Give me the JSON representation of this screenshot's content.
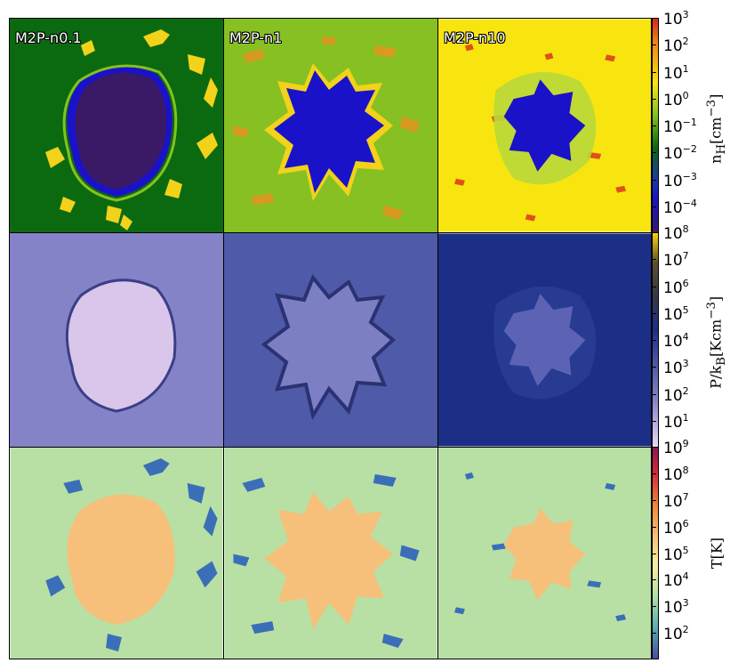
{
  "columns": [
    {
      "label": "M2P-n0.1"
    },
    {
      "label": "M2P-n1"
    },
    {
      "label": "M2P-n10"
    }
  ],
  "rows": [
    {
      "quantity": "density",
      "colorbar_label": "n_H[cm^-3]",
      "ticks": [
        "10^3",
        "10^2",
        "10^1",
        "10^0",
        "10^-1",
        "10^-2",
        "10^-3",
        "10^-4"
      ],
      "colors": {
        "bg": [
          "#0b6a0f",
          "#86c022",
          "#f8e510"
        ],
        "cloud": [
          "#3a1a66",
          "#1a12c8",
          "#1a12c8"
        ],
        "edge": "#f2d21a"
      }
    },
    {
      "quantity": "pressure",
      "colorbar_label": "P/k_B[Kcm^-3]",
      "ticks": [
        "10^8",
        "10^7",
        "10^6",
        "10^5",
        "10^4",
        "10^3",
        "10^2",
        "10^1"
      ],
      "colors": {
        "bg": [
          "#8483c8",
          "#4f5aa8",
          "#1c2f86"
        ],
        "cloud": [
          "#d9c6ea",
          "#7d7fc4",
          "#5c63b4"
        ],
        "edge": "#2a3272"
      }
    },
    {
      "quantity": "temperature",
      "colorbar_label": "T[K]",
      "ticks": [
        "10^9",
        "10^8",
        "10^7",
        "10^6",
        "10^5",
        "10^4",
        "10^3",
        "10^2"
      ],
      "colors": {
        "bg": [
          "#b8e0a4",
          "#b8e0a4",
          "#b8e0a4"
        ],
        "cloud": [
          "#f6c07a",
          "#f6c07a",
          "#f6c07a"
        ],
        "edge": "#3a6fb8"
      }
    }
  ],
  "colorbar_labels": {
    "density": "n_H[cm^-3]",
    "pressure": "P/k_B[Kcm^-3]",
    "temperature": "T[K]"
  },
  "tick_labels": {
    "density": [
      "10^3",
      "10^2",
      "10^1",
      "10^0",
      "10^-1",
      "10^-2",
      "10^-3",
      "10^-4"
    ],
    "pressure": [
      "10^8",
      "10^7",
      "10^6",
      "10^5",
      "10^4",
      "10^3",
      "10^2",
      "10^1"
    ],
    "temperature": [
      "10^9",
      "10^8",
      "10^7",
      "10^6",
      "10^5",
      "10^4",
      "10^3",
      "10^2"
    ]
  }
}
